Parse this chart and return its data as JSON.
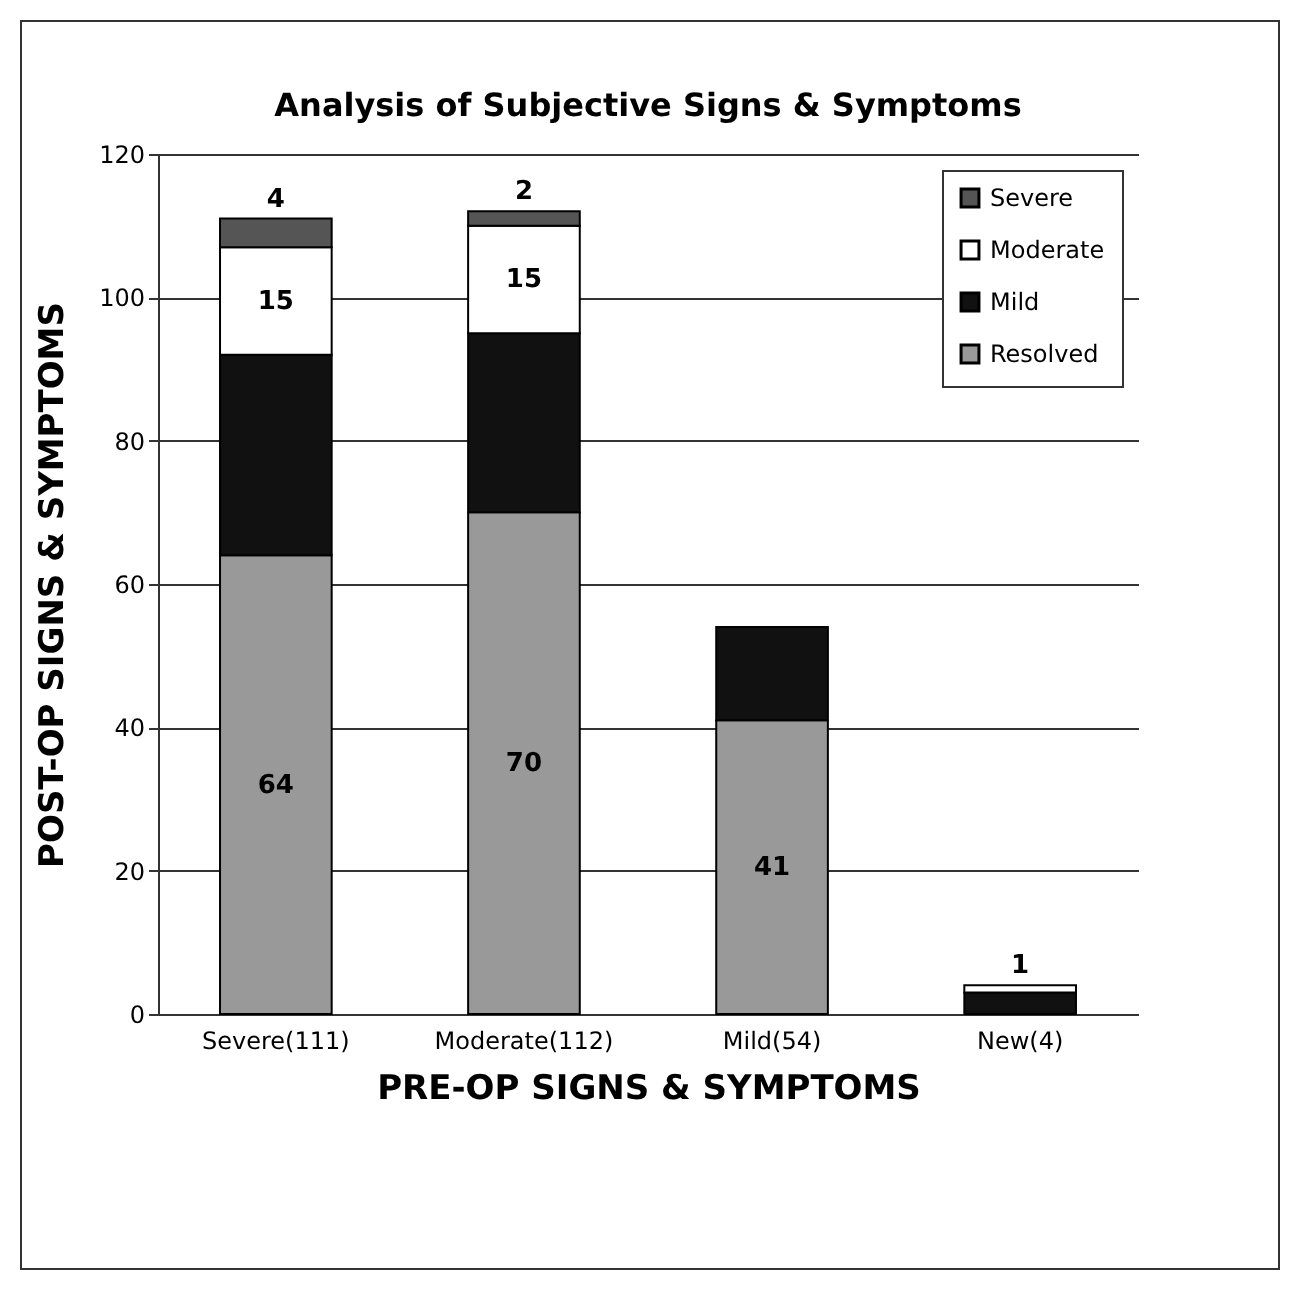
{
  "chart_data": {
    "type": "bar",
    "title": "Analysis of Subjective Signs & Symptoms",
    "xlabel": "PRE-OP SIGNS & SYMPTOMS",
    "ylabel": "POST-OP SIGNS & SYMPTOMS",
    "categories": [
      "Severe(111)",
      "Moderate(112)",
      "Mild(54)",
      "New(4)"
    ],
    "stacked": true,
    "series": [
      {
        "name": "Resolved",
        "color": "#999999",
        "values": [
          64,
          70,
          41,
          null
        ],
        "value_labels": [
          "64",
          "70",
          "41",
          null
        ]
      },
      {
        "name": "Mild",
        "color": "#111111",
        "values": [
          28,
          25,
          13,
          3
        ]
      },
      {
        "name": "Moderate",
        "color": "#ffffff",
        "values": [
          15,
          15,
          null,
          1
        ],
        "value_labels": [
          "15",
          "15",
          null,
          "1"
        ]
      },
      {
        "name": "Severe",
        "color": "#555555",
        "values": [
          4,
          2,
          null,
          null
        ],
        "value_labels": [
          "4",
          "2",
          null,
          null
        ]
      }
    ],
    "ylim": [
      0,
      120
    ],
    "yticks": [
      0,
      20,
      40,
      60,
      80,
      100,
      120
    ],
    "grid": "y",
    "legend": "top right"
  }
}
